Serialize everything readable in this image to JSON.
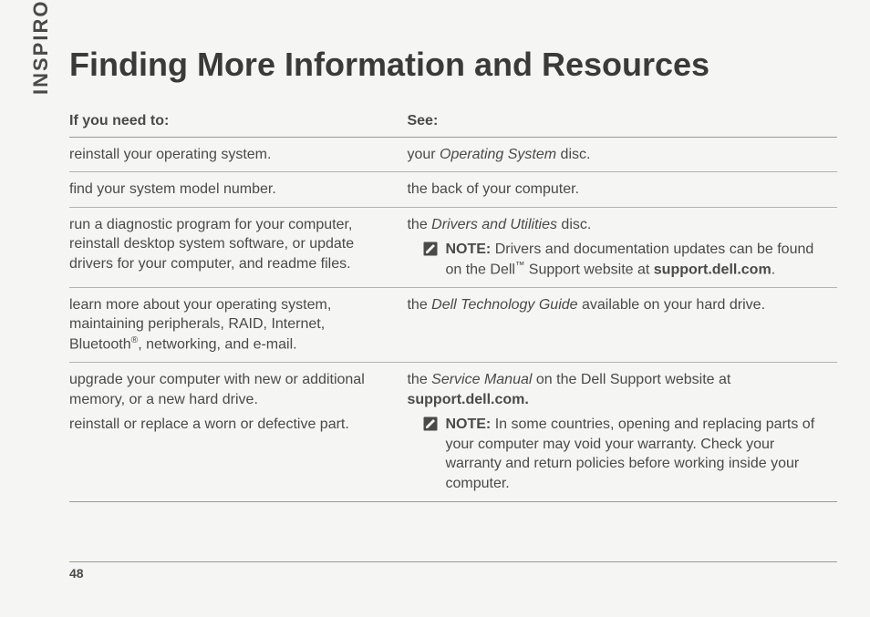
{
  "brand_vertical": "INSPIRON",
  "title": "Finding More Information and Resources",
  "page_number": "48",
  "headers": {
    "need": "If you need to:",
    "see": "See:"
  },
  "rows": [
    {
      "need": [
        {
          "t": "reinstall your operating system."
        }
      ],
      "see": [
        {
          "t": "your "
        },
        {
          "t": "Operating System",
          "ital": true
        },
        {
          "t": " disc."
        }
      ]
    },
    {
      "need": [
        {
          "t": "find your system model number."
        }
      ],
      "see": [
        {
          "t": "the back of your computer."
        }
      ]
    },
    {
      "need": [
        {
          "t": "run a diagnostic program for your computer, reinstall desktop system software, or update drivers for your computer, and readme files."
        }
      ],
      "see": [
        {
          "t": "the "
        },
        {
          "t": "Drivers and Utilities",
          "ital": true
        },
        {
          "t": " disc."
        },
        {
          "note": true,
          "runs": [
            {
              "t": "NOTE:",
              "bold": true
            },
            {
              "t": " Drivers and documentation updates can be found on the Dell"
            },
            {
              "t": "™",
              "sup": true
            },
            {
              "t": " Support website at "
            },
            {
              "t": "support.dell.com",
              "bold": true
            },
            {
              "t": "."
            }
          ]
        }
      ]
    },
    {
      "need": [
        {
          "t": "learn more about your operating system, maintaining peripherals, RAID, Internet, Bluetooth"
        },
        {
          "t": "®",
          "sup": true
        },
        {
          "t": ", networking, and e-mail."
        }
      ],
      "see": [
        {
          "t": "the "
        },
        {
          "t": "Dell Technology Guide",
          "ital": true
        },
        {
          "t": " available on your hard drive."
        }
      ]
    },
    {
      "need": [
        {
          "p": [
            {
              "t": "upgrade your computer with new or additional memory, or a new hard drive."
            }
          ]
        },
        {
          "p": [
            {
              "t": "reinstall or replace a worn or defective part."
            }
          ]
        }
      ],
      "see": [
        {
          "t": "the "
        },
        {
          "t": "Service Manual",
          "ital": true
        },
        {
          "t": " on the Dell Support website at "
        },
        {
          "t": "support.dell.com.",
          "bold": true
        },
        {
          "note": true,
          "runs": [
            {
              "t": "NOTE:",
              "bold": true
            },
            {
              "t": " In some countries, opening and replacing parts of your computer may void your warranty. Check your warranty and return policies before working inside your computer."
            }
          ]
        }
      ]
    }
  ],
  "style": {
    "background_color": "#f5f5f3",
    "text_color": "#4a4a48",
    "rule_color": "#9a9a96",
    "title_fontsize_pt": 28,
    "body_fontsize_pt": 12,
    "vertical_label_fontsize_pt": 16
  }
}
